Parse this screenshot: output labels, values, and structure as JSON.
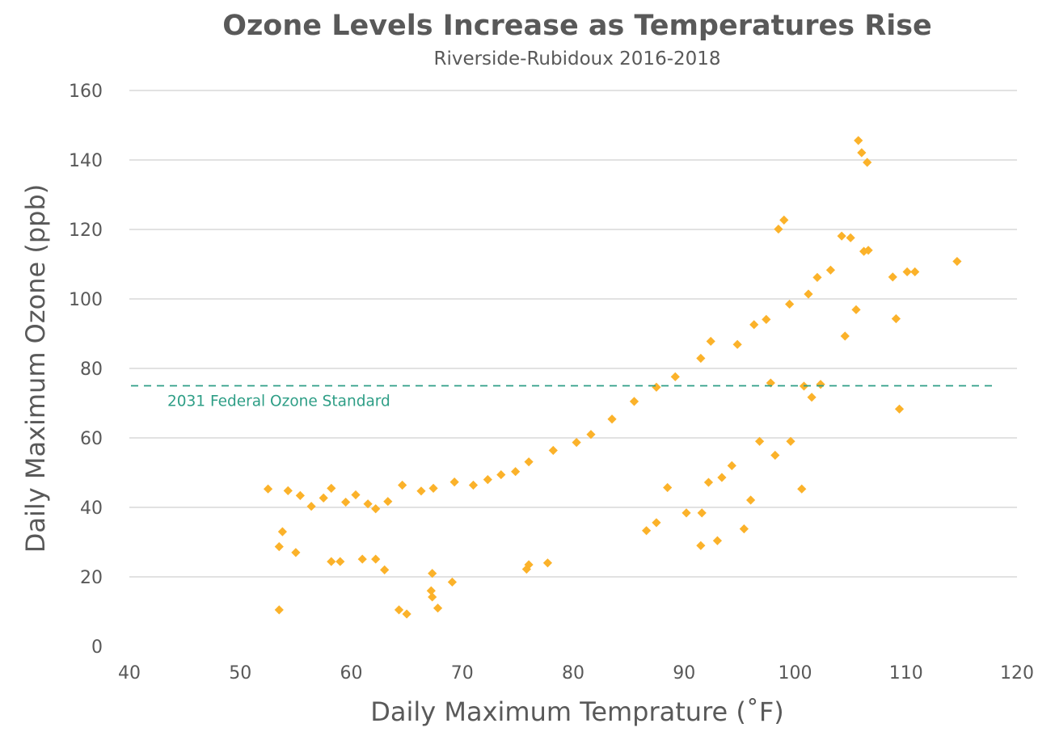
{
  "chart_data": {
    "type": "scatter",
    "title": "Ozone Levels Increase as Temperatures Rise",
    "subtitle": "Riverside-Rubidoux 2016-2018",
    "xlabel": "Daily Maximum Temprature (˚F)",
    "ylabel": "Daily Maximum Ozone (ppb)",
    "xlim": [
      40,
      120
    ],
    "ylim": [
      0,
      160
    ],
    "x_ticks": [
      40,
      50,
      60,
      70,
      80,
      90,
      100,
      110,
      120
    ],
    "y_ticks": [
      0,
      20,
      40,
      60,
      80,
      100,
      120,
      140,
      160
    ],
    "grid": "horizontal",
    "marker_color": "#FBB22A",
    "reference_line": {
      "y": 75,
      "label": "2031 Federal Ozone Standard",
      "color": "#2E9E86",
      "style": "dashed"
    },
    "series": [
      {
        "marker": "diamond",
        "x": [
          53.5,
          64.3,
          65.0,
          67.8,
          67.3,
          67.2,
          69.1,
          63.0,
          59.0,
          58.2,
          61.0,
          62.2,
          67.3,
          75.8,
          76.0,
          77.7,
          91.5,
          93.0,
          53.5,
          55.0,
          53.8,
          52.5,
          54.3,
          55.4,
          56.4,
          57.5,
          58.2,
          59.5,
          60.4,
          61.5,
          62.2,
          63.3,
          64.6,
          66.3,
          67.4,
          69.3,
          71.0,
          72.3,
          73.5,
          74.8,
          76.0,
          78.2,
          80.3,
          81.6,
          83.5,
          85.5,
          87.5,
          89.2,
          91.5,
          92.4,
          94.8,
          96.3,
          97.4,
          99.5,
          101.2,
          102.0,
          103.2,
          98.5,
          99.0,
          104.2,
          105.0,
          105.7,
          106.0,
          106.5,
          106.2,
          106.6,
          105.5,
          104.5,
          108.8,
          109.1,
          110.1,
          110.8,
          114.6,
          109.4,
          101.5,
          100.8,
          102.3,
          97.8,
          100.6,
          96.0,
          93.4,
          86.6,
          87.5,
          88.5,
          90.2,
          91.6,
          95.4,
          98.2,
          99.6,
          96.8,
          94.3,
          92.2
        ],
        "y": [
          10.5,
          10.5,
          9.3,
          11.0,
          14.2,
          16.0,
          18.5,
          22.0,
          24.4,
          24.4,
          25.1,
          25.1,
          21.0,
          22.2,
          23.5,
          24.0,
          29.0,
          30.4,
          28.7,
          27.0,
          33.0,
          45.3,
          44.8,
          43.4,
          40.3,
          42.7,
          45.5,
          41.5,
          43.6,
          41.0,
          39.6,
          41.7,
          46.4,
          44.7,
          45.5,
          47.3,
          46.4,
          48.0,
          49.4,
          50.3,
          53.1,
          56.4,
          58.7,
          61.0,
          65.4,
          70.5,
          74.6,
          77.6,
          82.9,
          87.8,
          86.9,
          92.6,
          94.1,
          98.5,
          101.4,
          106.2,
          108.3,
          120.1,
          122.7,
          118.1,
          117.6,
          145.6,
          142.1,
          139.3,
          113.7,
          114.0,
          96.9,
          89.3,
          106.3,
          94.3,
          107.8,
          107.8,
          110.8,
          68.3,
          71.7,
          74.9,
          75.4,
          75.8,
          45.3,
          42.1,
          48.6,
          33.3,
          35.6,
          45.7,
          38.4,
          38.4,
          33.8,
          55.0,
          59.0,
          59.0,
          52.0,
          47.2
        ]
      }
    ]
  }
}
